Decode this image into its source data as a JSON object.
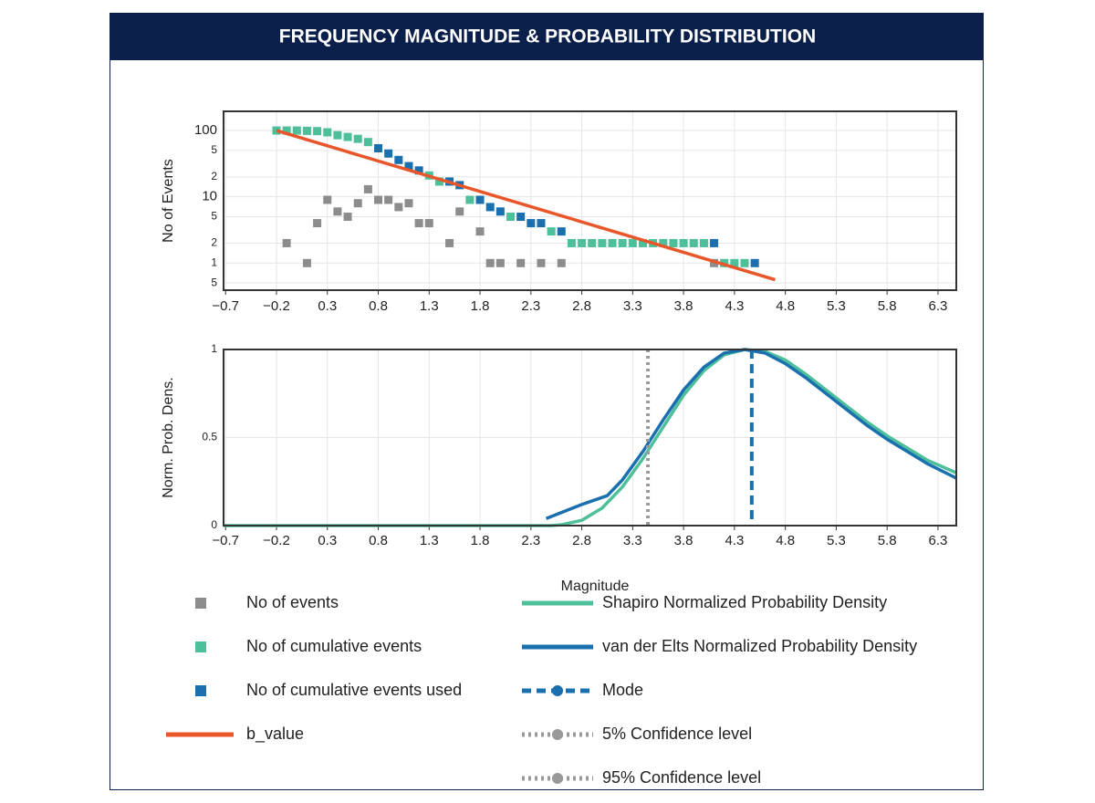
{
  "title": "FREQUENCY MAGNITUDE & PROBABILITY DISTRIBUTION",
  "chart_data": [
    {
      "type": "scatter",
      "ylabel": "No of Events",
      "ylog": true,
      "grid": true,
      "xlim": [
        -0.72,
        6.48
      ],
      "ylim": [
        0.39,
        195
      ],
      "xticks": [
        {
          "value": -0.7,
          "label": "−0.7"
        },
        {
          "value": -0.2,
          "label": "−0.2"
        },
        0.3,
        0.8,
        1.3,
        1.8,
        2.3,
        2.8,
        3.3,
        3.8,
        4.3,
        4.8,
        5.3,
        5.8,
        6.3
      ],
      "yticks": [
        100,
        {
          "value": 50,
          "label": "5"
        },
        {
          "value": 20,
          "label": "2"
        },
        10,
        5,
        2,
        1,
        {
          "value": 0.5,
          "label": "5"
        }
      ],
      "series": [
        {
          "name": "No of events",
          "color": "#8c8c8c",
          "mode": "markers",
          "x": [
            -0.1,
            0.1,
            0.2,
            0.3,
            0.4,
            0.5,
            0.6,
            0.7,
            0.8,
            0.9,
            1.0,
            1.1,
            1.2,
            1.3,
            1.5,
            1.6,
            1.8,
            1.9,
            2.0,
            2.2,
            2.4,
            2.6,
            4.1
          ],
          "values": [
            2,
            1,
            4,
            9,
            6,
            5,
            8,
            13,
            9,
            9,
            7,
            8,
            4,
            4,
            2,
            6,
            3,
            1,
            1,
            1,
            1,
            1,
            1
          ]
        },
        {
          "name": "No of cumulative events",
          "color": "#4dbf9a",
          "mode": "markers",
          "x": [
            -0.2,
            -0.1,
            0,
            0.1,
            0.2,
            0.3,
            0.4,
            0.5,
            0.6,
            0.7,
            1.3,
            1.4,
            1.7,
            2.1,
            2.5,
            2.7,
            2.8,
            2.9,
            3.0,
            3.1,
            3.2,
            3.3,
            3.4,
            3.5,
            3.6,
            3.7,
            3.8,
            3.9,
            4.0,
            4.2,
            4.3,
            4.4
          ],
          "values": [
            100,
            100,
            100,
            99,
            98,
            94,
            85,
            80,
            75,
            67,
            21,
            17,
            9,
            5,
            3,
            2,
            2,
            2,
            2,
            2,
            2,
            2,
            2,
            2,
            2,
            2,
            2,
            2,
            2,
            1,
            1,
            1
          ]
        },
        {
          "name": "No of cumulative events used",
          "color": "#1a6faf",
          "mode": "markers",
          "x": [
            0.8,
            0.9,
            1.0,
            1.1,
            1.2,
            1.5,
            1.6,
            1.8,
            1.9,
            2.0,
            2.2,
            2.3,
            2.4,
            2.6,
            4.1,
            4.5
          ],
          "values": [
            54,
            45,
            36,
            29,
            25,
            17,
            15,
            9,
            7,
            6,
            5,
            4,
            4,
            3,
            2,
            1
          ]
        },
        {
          "name": "b_value",
          "color": "#e8562a",
          "mode": "lines",
          "x": [
            -0.2,
            4.7
          ],
          "values": [
            100,
            0.56
          ]
        }
      ]
    },
    {
      "type": "line",
      "ylabel": "Norm. Prob. Dens.",
      "xlabel": "Magnitude",
      "grid": true,
      "xlim": [
        -0.72,
        6.48
      ],
      "ylim": [
        0,
        1
      ],
      "xticks": [
        {
          "value": -0.7,
          "label": "−0.7"
        },
        {
          "value": -0.2,
          "label": "−0.2"
        },
        0.3,
        0.8,
        1.3,
        1.8,
        2.3,
        2.8,
        3.3,
        3.8,
        4.3,
        4.8,
        5.3,
        5.8,
        6.3
      ],
      "yticks": [
        0,
        0.5,
        1
      ],
      "series": [
        {
          "name": "Shapiro Normalized Probability Density",
          "color": "#4dbf9a",
          "mode": "lines",
          "x": [
            -0.72,
            2.5,
            2.6,
            2.8,
            3.0,
            3.2,
            3.4,
            3.6,
            3.8,
            4.0,
            4.2,
            4.4,
            4.6,
            4.8,
            5.0,
            5.2,
            5.4,
            5.6,
            5.8,
            6.0,
            6.2,
            6.48
          ],
          "values": [
            0,
            0,
            0.005,
            0.03,
            0.1,
            0.22,
            0.38,
            0.56,
            0.74,
            0.88,
            0.97,
            1.0,
            0.99,
            0.94,
            0.86,
            0.77,
            0.68,
            0.59,
            0.51,
            0.44,
            0.37,
            0.3
          ]
        },
        {
          "name": "van der Elts Normalized Probability Density",
          "color": "#1a6faf",
          "mode": "lines",
          "x": [
            2.45,
            2.8,
            3.05,
            3.2,
            3.4,
            3.6,
            3.8,
            4.0,
            4.2,
            4.4,
            4.6,
            4.8,
            5.0,
            5.2,
            5.4,
            5.6,
            5.8,
            6.0,
            6.2,
            6.48
          ],
          "values": [
            0.04,
            0.12,
            0.17,
            0.26,
            0.42,
            0.6,
            0.77,
            0.9,
            0.98,
            1.0,
            0.98,
            0.92,
            0.84,
            0.75,
            0.66,
            0.57,
            0.49,
            0.42,
            0.35,
            0.27
          ]
        },
        {
          "name": "Mode",
          "color": "#1a6faf",
          "mode": "vline",
          "dash": "dash",
          "x": 4.47
        },
        {
          "name": "5% Confidence level",
          "color": "#999999",
          "mode": "vline",
          "dash": "dot",
          "x": 3.45
        },
        {
          "name": "95% Confidence level",
          "color": "#999999",
          "mode": "vline",
          "dash": "dot"
        }
      ]
    }
  ]
}
